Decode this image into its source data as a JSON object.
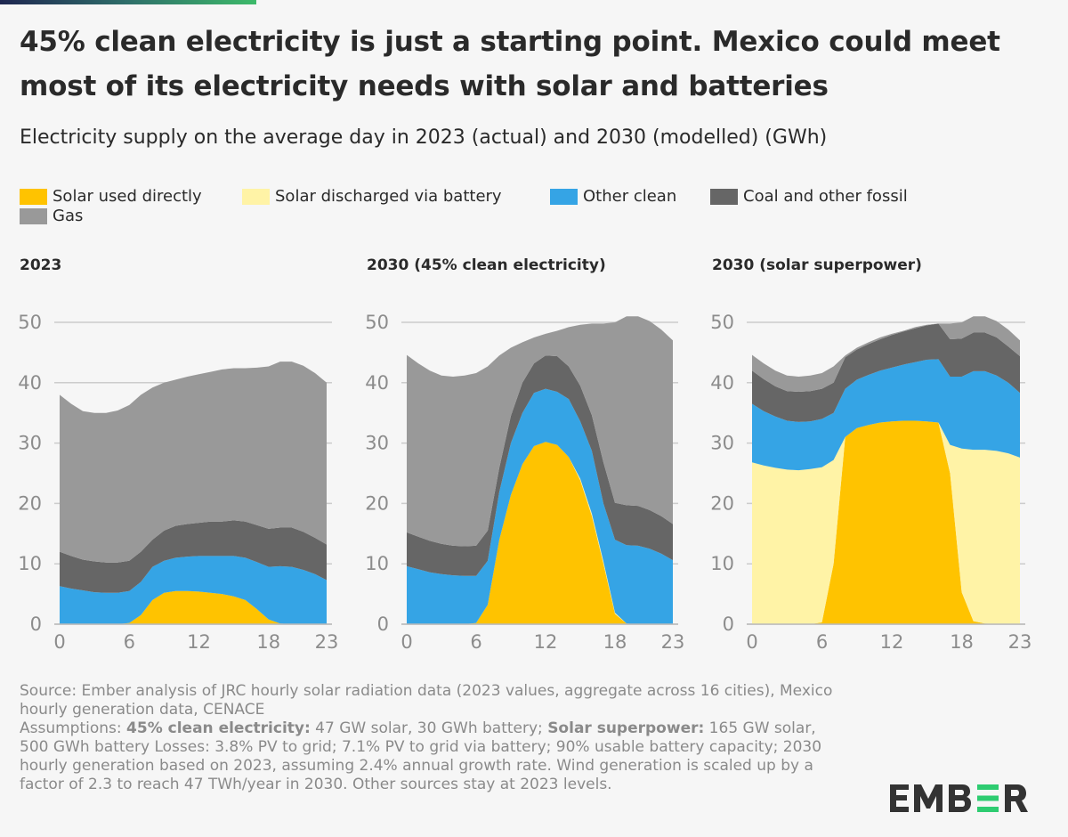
{
  "title": "45% clean electricity is just a starting point. Mexico could meet most of its electricity needs with solar and batteries",
  "subtitle": "Electricity supply on the average day in 2023 (actual) and 2030 (modelled) (GWh)",
  "legend": [
    {
      "label": "Solar used directly",
      "color": "#ffc300"
    },
    {
      "label": "Solar discharged via battery",
      "color": "#fff3a6"
    },
    {
      "label": "Other clean",
      "color": "#35a4e5"
    },
    {
      "label": "Coal and other fossil",
      "color": "#666666"
    },
    {
      "label": "Gas",
      "color": "#999999"
    }
  ],
  "chart_data": [
    {
      "type": "area",
      "stacked": true,
      "title": "2023",
      "x": [
        0,
        1,
        2,
        3,
        4,
        5,
        6,
        7,
        8,
        9,
        10,
        11,
        12,
        13,
        14,
        15,
        16,
        17,
        18,
        19,
        20,
        21,
        22,
        23
      ],
      "xticks": [
        "0",
        "6",
        "12",
        "18",
        "23"
      ],
      "yticks": [
        "0",
        "10",
        "20",
        "30",
        "40",
        "50"
      ],
      "ylim": [
        0,
        50
      ],
      "grid": true,
      "series": [
        {
          "name": "Solar used directly",
          "values": [
            0,
            0,
            0,
            0,
            0,
            0,
            0.2,
            1.5,
            4,
            5.2,
            5.5,
            5.5,
            5.4,
            5.2,
            5,
            4.6,
            4,
            2.5,
            0.8,
            0.1,
            0,
            0,
            0,
            0
          ]
        },
        {
          "name": "Solar discharged via battery",
          "values": [
            0,
            0,
            0,
            0,
            0,
            0,
            0,
            0,
            0,
            0,
            0,
            0,
            0,
            0,
            0,
            0,
            0,
            0,
            0,
            0,
            0,
            0,
            0,
            0
          ]
        },
        {
          "name": "Other clean",
          "values": [
            6.3,
            5.9,
            5.6,
            5.3,
            5.2,
            5.2,
            5.3,
            5.5,
            5.5,
            5.3,
            5.5,
            5.7,
            5.9,
            6.1,
            6.3,
            6.7,
            7,
            7.8,
            8.7,
            9.5,
            9.5,
            9,
            8.3,
            7.3
          ]
        },
        {
          "name": "Coal and other fossil",
          "values": [
            5.7,
            5.4,
            5.1,
            5.1,
            5,
            5,
            5,
            5,
            4.5,
            5,
            5.3,
            5.4,
            5.5,
            5.7,
            5.7,
            5.9,
            6,
            6.1,
            6.3,
            6.4,
            6.5,
            6.3,
            6,
            5.9
          ]
        },
        {
          "name": "Gas",
          "values": [
            26,
            25.2,
            24.6,
            24.6,
            24.8,
            25.2,
            25.8,
            26,
            25.2,
            24.5,
            24.2,
            24.4,
            24.6,
            24.8,
            25.2,
            25.2,
            25.4,
            26.1,
            26.9,
            27.5,
            27.5,
            27.5,
            27.3,
            26.8
          ]
        }
      ]
    },
    {
      "type": "area",
      "stacked": true,
      "title": "2030 (45% clean electricity)",
      "x": [
        0,
        1,
        2,
        3,
        4,
        5,
        6,
        7,
        8,
        9,
        10,
        11,
        12,
        13,
        14,
        15,
        16,
        17,
        18,
        19,
        20,
        21,
        22,
        23
      ],
      "xticks": [
        "0",
        "6",
        "12",
        "18",
        "23"
      ],
      "yticks": [
        "0",
        "10",
        "20",
        "30",
        "40",
        "50"
      ],
      "ylim": [
        0,
        50
      ],
      "grid": true,
      "series": [
        {
          "name": "Solar used directly",
          "values": [
            0,
            0,
            0,
            0,
            0,
            0,
            0.2,
            3.2,
            14,
            21.4,
            26.5,
            29.5,
            30.2,
            29.7,
            27.7,
            23.8,
            17.9,
            10,
            1.7,
            0.1,
            0,
            0,
            0,
            0
          ]
        },
        {
          "name": "Solar discharged via battery",
          "values": [
            0,
            0,
            0,
            0,
            0,
            0,
            0,
            0,
            0,
            0,
            0,
            0,
            0,
            0,
            0,
            0.3,
            0.4,
            0.4,
            0.2,
            0,
            0,
            0,
            0,
            0
          ]
        },
        {
          "name": "Other clean",
          "values": [
            9.6,
            9.1,
            8.6,
            8.3,
            8.1,
            8,
            7.8,
            7.3,
            7.9,
            8.6,
            8.5,
            8.8,
            8.8,
            8.8,
            9.6,
            9.5,
            10.4,
            9.6,
            12.1,
            13,
            13,
            12.5,
            11.7,
            10.6
          ]
        },
        {
          "name": "Coal and other fossil",
          "values": [
            5.6,
            5.4,
            5.2,
            5,
            4.9,
            4.9,
            5,
            5,
            4,
            4.5,
            5,
            4.9,
            5.5,
            5.9,
            5.4,
            5.9,
            5.9,
            6.8,
            6.1,
            6.6,
            6.6,
            6.4,
            6.2,
            6
          ]
        },
        {
          "name": "Gas",
          "values": [
            29.4,
            28.7,
            28.2,
            27.9,
            28,
            28.3,
            28.6,
            27.2,
            18.6,
            11.3,
            6.7,
            4.3,
            3.6,
            4.2,
            6.5,
            10.1,
            15.2,
            23,
            29.9,
            31.3,
            31.4,
            31.3,
            30.9,
            30.4
          ]
        }
      ]
    },
    {
      "type": "area",
      "stacked": true,
      "title": "2030 (solar superpower)",
      "x": [
        0,
        1,
        2,
        3,
        4,
        5,
        6,
        7,
        8,
        9,
        10,
        11,
        12,
        13,
        14,
        15,
        16,
        17,
        18,
        19,
        20,
        21,
        22,
        23
      ],
      "xticks": [
        "0",
        "6",
        "12",
        "18",
        "23"
      ],
      "yticks": [
        "0",
        "10",
        "20",
        "30",
        "40",
        "50"
      ],
      "ylim": [
        0,
        50
      ],
      "grid": true,
      "series": [
        {
          "name": "Solar used directly",
          "values": [
            0,
            0,
            0,
            0,
            0,
            0,
            0.3,
            10,
            31,
            32.5,
            33,
            33.4,
            33.6,
            33.7,
            33.7,
            33.6,
            33.4,
            25,
            5.3,
            0.5,
            0.1,
            0,
            0,
            0
          ]
        },
        {
          "name": "Solar discharged via battery",
          "values": [
            26.8,
            26.3,
            25.9,
            25.6,
            25.5,
            25.7,
            25.7,
            17.2,
            0,
            0,
            0,
            0,
            0,
            0,
            0,
            0,
            0,
            4.7,
            23.8,
            28.4,
            28.8,
            28.7,
            28.3,
            27.6
          ]
        },
        {
          "name": "Other clean",
          "values": [
            9.7,
            9,
            8.5,
            8.1,
            8,
            7.9,
            8,
            7.8,
            8,
            8,
            8.3,
            8.6,
            8.9,
            9.3,
            9.7,
            10.2,
            10.5,
            11.3,
            11.9,
            13,
            13,
            12.5,
            11.7,
            10.7
          ]
        },
        {
          "name": "Coal and other fossil",
          "values": [
            5.5,
            5.3,
            5,
            4.9,
            5,
            5,
            5,
            5,
            5.2,
            5,
            5.1,
            5.2,
            5.4,
            5.5,
            5.6,
            5.7,
            5.9,
            6.2,
            6.3,
            6.4,
            6.4,
            6.3,
            6,
            6.1
          ]
        },
        {
          "name": "Gas",
          "values": [
            2.6,
            2.6,
            2.6,
            2.6,
            2.5,
            2.6,
            2.6,
            2.7,
            0.3,
            0.3,
            0.3,
            0.3,
            0.2,
            0.1,
            0.2,
            0.1,
            0,
            2.6,
            2.7,
            2.7,
            2.7,
            2.7,
            2.8,
            2.6
          ]
        }
      ]
    }
  ],
  "footnote": {
    "source": "Source: Ember analysis of JRC hourly solar radiation data (2023 values, aggregate across 16 cities), Mexico hourly generation data, CENACE",
    "assumptions_prefix": "Assumptions: ",
    "scenario1_label": "45% clean electricity:",
    "scenario1_text": " 47 GW solar, 30 GWh battery; ",
    "scenario2_label": "Solar superpower:",
    "scenario2_text": " 165 GW solar, 500 GWh battery Losses: 3.8% PV to grid; 7.1% PV to grid via battery; 90% usable battery capacity; 2030 hourly generation based on 2023, assuming 2.4% annual growth rate. Wind generation is scaled up by a factor of 2.3 to reach 47 TWh/year in 2030. Other sources stay at 2023 levels."
  },
  "logo": {
    "text": "EMBER",
    "accent": "#2ecc71",
    "color": "#333333"
  }
}
